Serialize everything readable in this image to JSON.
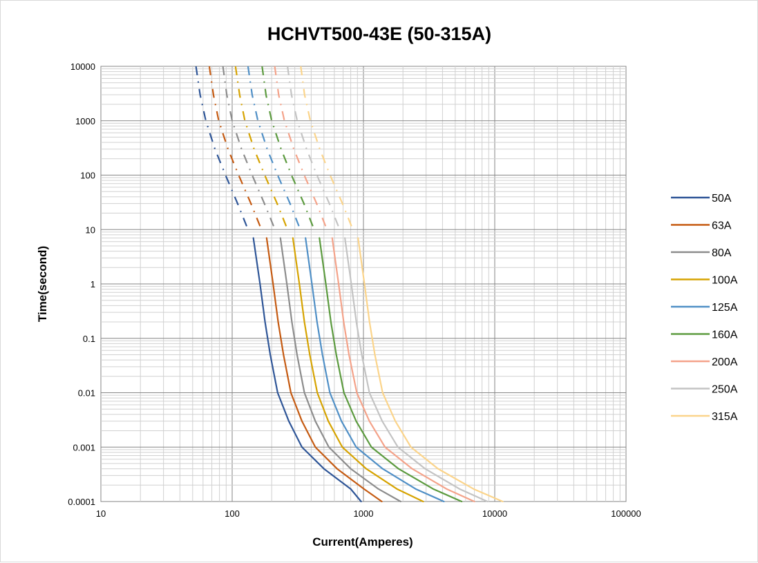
{
  "chart_data": {
    "type": "line",
    "title": "HCHVT500-43E  (50-315A)",
    "xlabel": "Current(Amperes)",
    "ylabel": "Time(second)",
    "x_scale": "log",
    "y_scale": "log",
    "xlim": [
      10,
      100000
    ],
    "ylim": [
      0.0001,
      10000
    ],
    "x_ticks": [
      "10",
      "100",
      "1000",
      "10000",
      "100000"
    ],
    "y_ticks": [
      "10000",
      "1000",
      "100",
      "10",
      "1",
      "0.1",
      "0.01",
      "0.001",
      "0.0001"
    ],
    "grid": true,
    "legend_position": "right",
    "series": [
      {
        "name": "50A",
        "color": "#2e5597",
        "dotted": [
          [
            53,
            10000
          ],
          [
            57,
            3000
          ],
          [
            63,
            1000
          ],
          [
            74,
            300
          ],
          [
            89,
            100
          ],
          [
            110,
            30
          ],
          [
            132,
            10
          ]
        ],
        "solid": [
          [
            145,
            7
          ],
          [
            163,
            1
          ],
          [
            178,
            0.2
          ],
          [
            195,
            0.05
          ],
          [
            222,
            0.01
          ],
          [
            270,
            0.003
          ],
          [
            340,
            0.001
          ],
          [
            500,
            0.0004
          ],
          [
            800,
            0.00017
          ],
          [
            960,
            0.0001
          ]
        ]
      },
      {
        "name": "63A",
        "color": "#c55a11",
        "dotted": [
          [
            67,
            10000
          ],
          [
            72,
            3000
          ],
          [
            79,
            1000
          ],
          [
            93,
            300
          ],
          [
            112,
            100
          ],
          [
            139,
            30
          ],
          [
            167,
            10
          ]
        ],
        "solid": [
          [
            183,
            7
          ],
          [
            205,
            1
          ],
          [
            224,
            0.2
          ],
          [
            246,
            0.05
          ],
          [
            280,
            0.01
          ],
          [
            340,
            0.003
          ],
          [
            430,
            0.001
          ],
          [
            630,
            0.0004
          ],
          [
            1010,
            0.00017
          ],
          [
            1380,
            0.0001
          ]
        ]
      },
      {
        "name": "80A",
        "color": "#8c8c8c",
        "dotted": [
          [
            85,
            10000
          ],
          [
            91,
            3000
          ],
          [
            100,
            1000
          ],
          [
            118,
            300
          ],
          [
            142,
            100
          ],
          [
            176,
            30
          ],
          [
            212,
            10
          ]
        ],
        "solid": [
          [
            233,
            7
          ],
          [
            261,
            1
          ],
          [
            285,
            0.2
          ],
          [
            312,
            0.05
          ],
          [
            355,
            0.01
          ],
          [
            430,
            0.003
          ],
          [
            545,
            0.001
          ],
          [
            800,
            0.0004
          ],
          [
            1300,
            0.00017
          ],
          [
            1920,
            0.0001
          ]
        ]
      },
      {
        "name": "100A",
        "color": "#d6a300",
        "dotted": [
          [
            106,
            10000
          ],
          [
            114,
            3000
          ],
          [
            125,
            1000
          ],
          [
            147,
            300
          ],
          [
            177,
            100
          ],
          [
            220,
            30
          ],
          [
            264,
            10
          ]
        ],
        "solid": [
          [
            290,
            7
          ],
          [
            325,
            1
          ],
          [
            355,
            0.2
          ],
          [
            390,
            0.05
          ],
          [
            445,
            0.01
          ],
          [
            540,
            0.003
          ],
          [
            690,
            0.001
          ],
          [
            1050,
            0.0004
          ],
          [
            1800,
            0.00017
          ],
          [
            2850,
            0.0001
          ]
        ]
      },
      {
        "name": "125A",
        "color": "#4f8fc6",
        "dotted": [
          [
            132,
            10000
          ],
          [
            142,
            3000
          ],
          [
            157,
            1000
          ],
          [
            185,
            300
          ],
          [
            222,
            100
          ],
          [
            276,
            30
          ],
          [
            330,
            10
          ]
        ],
        "solid": [
          [
            362,
            7
          ],
          [
            405,
            1
          ],
          [
            443,
            0.2
          ],
          [
            487,
            0.05
          ],
          [
            555,
            0.01
          ],
          [
            680,
            0.003
          ],
          [
            880,
            0.001
          ],
          [
            1400,
            0.0004
          ],
          [
            2500,
            0.00017
          ],
          [
            4100,
            0.0001
          ]
        ]
      },
      {
        "name": "160A",
        "color": "#5b9a3e",
        "dotted": [
          [
            169,
            10000
          ],
          [
            181,
            3000
          ],
          [
            200,
            1000
          ],
          [
            236,
            300
          ],
          [
            283,
            100
          ],
          [
            352,
            30
          ],
          [
            421,
            10
          ]
        ],
        "solid": [
          [
            462,
            7
          ],
          [
            517,
            1
          ],
          [
            565,
            0.2
          ],
          [
            621,
            0.05
          ],
          [
            710,
            0.01
          ],
          [
            880,
            0.003
          ],
          [
            1150,
            0.001
          ],
          [
            1850,
            0.0004
          ],
          [
            3400,
            0.00017
          ],
          [
            5600,
            0.0001
          ]
        ]
      },
      {
        "name": "200A",
        "color": "#f4a289",
        "dotted": [
          [
            211,
            10000
          ],
          [
            226,
            3000
          ],
          [
            250,
            1000
          ],
          [
            295,
            300
          ],
          [
            354,
            100
          ],
          [
            440,
            30
          ],
          [
            527,
            10
          ]
        ],
        "solid": [
          [
            578,
            7
          ],
          [
            647,
            1
          ],
          [
            707,
            0.2
          ],
          [
            776,
            0.05
          ],
          [
            890,
            0.01
          ],
          [
            1110,
            0.003
          ],
          [
            1460,
            0.001
          ],
          [
            2350,
            0.0004
          ],
          [
            4300,
            0.00017
          ],
          [
            7000,
            0.0001
          ]
        ]
      },
      {
        "name": "250A",
        "color": "#c3c3c3",
        "dotted": [
          [
            264,
            10000
          ],
          [
            283,
            3000
          ],
          [
            313,
            1000
          ],
          [
            369,
            300
          ],
          [
            442,
            100
          ],
          [
            550,
            30
          ],
          [
            659,
            10
          ]
        ],
        "solid": [
          [
            722,
            7
          ],
          [
            808,
            1
          ],
          [
            883,
            0.2
          ],
          [
            970,
            0.05
          ],
          [
            1110,
            0.01
          ],
          [
            1390,
            0.003
          ],
          [
            1830,
            0.001
          ],
          [
            2950,
            0.0004
          ],
          [
            5400,
            0.00017
          ],
          [
            8800,
            0.0001
          ]
        ]
      },
      {
        "name": "315A",
        "color": "#fbd48a",
        "dotted": [
          [
            333,
            10000
          ],
          [
            356,
            3000
          ],
          [
            394,
            1000
          ],
          [
            465,
            300
          ],
          [
            557,
            100
          ],
          [
            692,
            30
          ],
          [
            830,
            10
          ]
        ],
        "solid": [
          [
            910,
            7
          ],
          [
            1018,
            1
          ],
          [
            1112,
            0.2
          ],
          [
            1222,
            0.05
          ],
          [
            1400,
            0.01
          ],
          [
            1750,
            0.003
          ],
          [
            2300,
            0.001
          ],
          [
            3700,
            0.0004
          ],
          [
            6900,
            0.00017
          ],
          [
            11500,
            0.0001
          ]
        ]
      }
    ]
  }
}
